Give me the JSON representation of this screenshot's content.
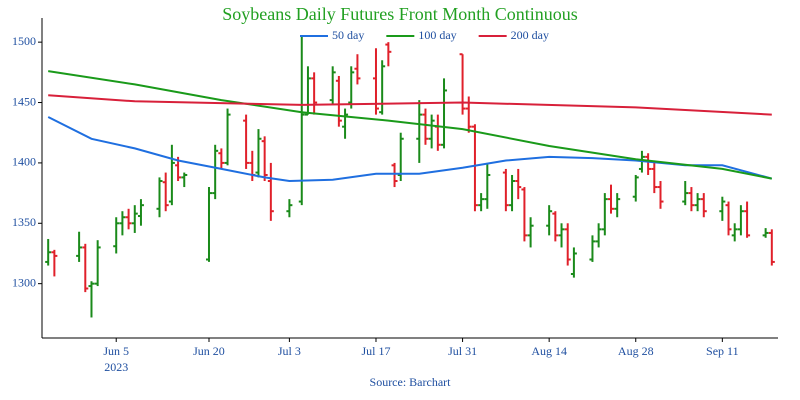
{
  "chart_data": {
    "type": "ohlc",
    "title": "Soybeans Daily Futures Front Month Continuous",
    "title_color": "#22a022",
    "source": "Source: Barchart",
    "up_color": "#1a8a1a",
    "down_color": "#e0202a",
    "xlim": [
      "2023-05-24",
      "2023-09-20"
    ],
    "xticks": [
      {
        "value": "2023-06-05",
        "label": "Jun 5"
      },
      {
        "value": "2023-06-20",
        "label": "Jun 20"
      },
      {
        "value": "2023-07-03",
        "label": "Jul 3"
      },
      {
        "value": "2023-07-17",
        "label": "Jul 17"
      },
      {
        "value": "2023-07-31",
        "label": "Jul 31"
      },
      {
        "value": "2023-08-14",
        "label": "Aug 14"
      },
      {
        "value": "2023-08-28",
        "label": "Aug 28"
      },
      {
        "value": "2023-09-11",
        "label": "Sep 11"
      }
    ],
    "x_year_label": "2023",
    "ylim": [
      1255,
      1520
    ],
    "yticks": [
      1300,
      1350,
      1400,
      1450,
      1500
    ],
    "x": [
      "2023-05-25",
      "2023-05-26",
      "2023-05-30",
      "2023-05-31",
      "2023-06-01",
      "2023-06-02",
      "2023-06-05",
      "2023-06-06",
      "2023-06-07",
      "2023-06-08",
      "2023-06-09",
      "2023-06-12",
      "2023-06-13",
      "2023-06-14",
      "2023-06-15",
      "2023-06-16",
      "2023-06-20",
      "2023-06-21",
      "2023-06-22",
      "2023-06-23",
      "2023-06-26",
      "2023-06-27",
      "2023-06-28",
      "2023-06-29",
      "2023-06-30",
      "2023-07-03",
      "2023-07-05",
      "2023-07-06",
      "2023-07-07",
      "2023-07-10",
      "2023-07-11",
      "2023-07-12",
      "2023-07-13",
      "2023-07-14",
      "2023-07-17",
      "2023-07-18",
      "2023-07-19",
      "2023-07-20",
      "2023-07-21",
      "2023-07-24",
      "2023-07-25",
      "2023-07-26",
      "2023-07-27",
      "2023-07-28",
      "2023-07-31",
      "2023-08-01",
      "2023-08-02",
      "2023-08-03",
      "2023-08-04",
      "2023-08-07",
      "2023-08-08",
      "2023-08-09",
      "2023-08-10",
      "2023-08-11",
      "2023-08-14",
      "2023-08-15",
      "2023-08-16",
      "2023-08-17",
      "2023-08-18",
      "2023-08-21",
      "2023-08-22",
      "2023-08-23",
      "2023-08-24",
      "2023-08-25",
      "2023-08-28",
      "2023-08-29",
      "2023-08-30",
      "2023-08-31",
      "2023-09-01",
      "2023-09-05",
      "2023-09-06",
      "2023-09-07",
      "2023-09-08",
      "2023-09-11",
      "2023-09-12",
      "2023-09-13",
      "2023-09-14",
      "2023-09-15",
      "2023-09-18",
      "2023-09-19"
    ],
    "open": [
      1318,
      1326,
      1323,
      1330,
      1298,
      1300,
      1331,
      1350,
      1355,
      1350,
      1356,
      1362,
      1384,
      1368,
      1398,
      1388,
      1320,
      1375,
      1408,
      1400,
      1435,
      1400,
      1392,
      1418,
      1385,
      1360,
      1368,
      1440,
      1470,
      1452,
      1468,
      1430,
      1450,
      1478,
      1470,
      1442,
      1498,
      1398,
      1390,
      1420,
      1440,
      1420,
      1430,
      1415,
      1490,
      1445,
      1430,
      1365,
      1370,
      1392,
      1365,
      1385,
      1378,
      1340,
      1348,
      1358,
      1340,
      1345,
      1308,
      1320,
      1335,
      1345,
      1370,
      1362,
      1372,
      1395,
      1405,
      1395,
      1380,
      1368,
      1375,
      1365,
      1370,
      1360,
      1365,
      1340,
      1345,
      1360,
      1340,
      1342
    ],
    "high": [
      1337,
      1328,
      1343,
      1333,
      1302,
      1336,
      1355,
      1360,
      1362,
      1365,
      1370,
      1388,
      1392,
      1415,
      1405,
      1392,
      1380,
      1415,
      1412,
      1445,
      1440,
      1410,
      1428,
      1422,
      1400,
      1370,
      1505,
      1480,
      1475,
      1480,
      1472,
      1445,
      1480,
      1490,
      1495,
      1485,
      1500,
      1400,
      1425,
      1452,
      1445,
      1440,
      1440,
      1470,
      1490,
      1455,
      1432,
      1375,
      1400,
      1395,
      1390,
      1395,
      1380,
      1355,
      1365,
      1360,
      1350,
      1350,
      1330,
      1340,
      1350,
      1375,
      1382,
      1375,
      1390,
      1410,
      1408,
      1400,
      1385,
      1385,
      1380,
      1375,
      1375,
      1372,
      1368,
      1350,
      1365,
      1368,
      1346,
      1345
    ],
    "low": [
      1315,
      1306,
      1318,
      1293,
      1272,
      1298,
      1325,
      1340,
      1345,
      1342,
      1348,
      1355,
      1360,
      1365,
      1385,
      1380,
      1318,
      1370,
      1395,
      1398,
      1395,
      1385,
      1388,
      1385,
      1352,
      1355,
      1365,
      1440,
      1440,
      1448,
      1430,
      1420,
      1445,
      1465,
      1440,
      1440,
      1480,
      1380,
      1385,
      1400,
      1415,
      1412,
      1410,
      1412,
      1440,
      1425,
      1360,
      1360,
      1362,
      1360,
      1360,
      1370,
      1335,
      1330,
      1340,
      1335,
      1330,
      1315,
      1305,
      1318,
      1330,
      1340,
      1358,
      1355,
      1368,
      1392,
      1390,
      1375,
      1362,
      1365,
      1360,
      1360,
      1355,
      1352,
      1340,
      1335,
      1340,
      1338,
      1338,
      1315
    ],
    "close": [
      1326,
      1323,
      1330,
      1296,
      1300,
      1330,
      1350,
      1355,
      1350,
      1358,
      1365,
      1385,
      1365,
      1400,
      1388,
      1390,
      1375,
      1410,
      1400,
      1440,
      1400,
      1390,
      1420,
      1390,
      1360,
      1365,
      1440,
      1470,
      1450,
      1475,
      1435,
      1440,
      1475,
      1470,
      1445,
      1480,
      1492,
      1385,
      1420,
      1440,
      1420,
      1435,
      1415,
      1460,
      1445,
      1430,
      1365,
      1370,
      1390,
      1365,
      1385,
      1380,
      1340,
      1348,
      1360,
      1340,
      1345,
      1320,
      1325,
      1335,
      1345,
      1370,
      1362,
      1370,
      1388,
      1405,
      1395,
      1380,
      1368,
      1375,
      1365,
      1370,
      1360,
      1368,
      1345,
      1345,
      1360,
      1340,
      1342,
      1318
    ],
    "series": [
      {
        "name": "50 day",
        "color": "#1f6fe0",
        "x": [
          "2023-05-25",
          "2023-06-01",
          "2023-06-08",
          "2023-06-15",
          "2023-06-22",
          "2023-06-29",
          "2023-07-03",
          "2023-07-10",
          "2023-07-17",
          "2023-07-24",
          "2023-07-31",
          "2023-08-07",
          "2023-08-14",
          "2023-08-21",
          "2023-08-28",
          "2023-09-05",
          "2023-09-11",
          "2023-09-19"
        ],
        "values": [
          1438,
          1420,
          1412,
          1402,
          1395,
          1388,
          1385,
          1386,
          1391,
          1391,
          1396,
          1402,
          1405,
          1404,
          1402,
          1398,
          1398,
          1387
        ]
      },
      {
        "name": "100 day",
        "color": "#1a9a1a",
        "x": [
          "2023-05-25",
          "2023-06-08",
          "2023-06-22",
          "2023-07-05",
          "2023-07-19",
          "2023-07-31",
          "2023-08-14",
          "2023-08-28",
          "2023-09-11",
          "2023-09-19"
        ],
        "values": [
          1476,
          1465,
          1452,
          1442,
          1435,
          1428,
          1414,
          1403,
          1395,
          1387
        ]
      },
      {
        "name": "200 day",
        "color": "#d8203a",
        "x": [
          "2023-05-25",
          "2023-06-08",
          "2023-07-05",
          "2023-07-31",
          "2023-08-28",
          "2023-09-19"
        ],
        "values": [
          1456,
          1451,
          1448,
          1450,
          1446,
          1440
        ]
      }
    ]
  }
}
